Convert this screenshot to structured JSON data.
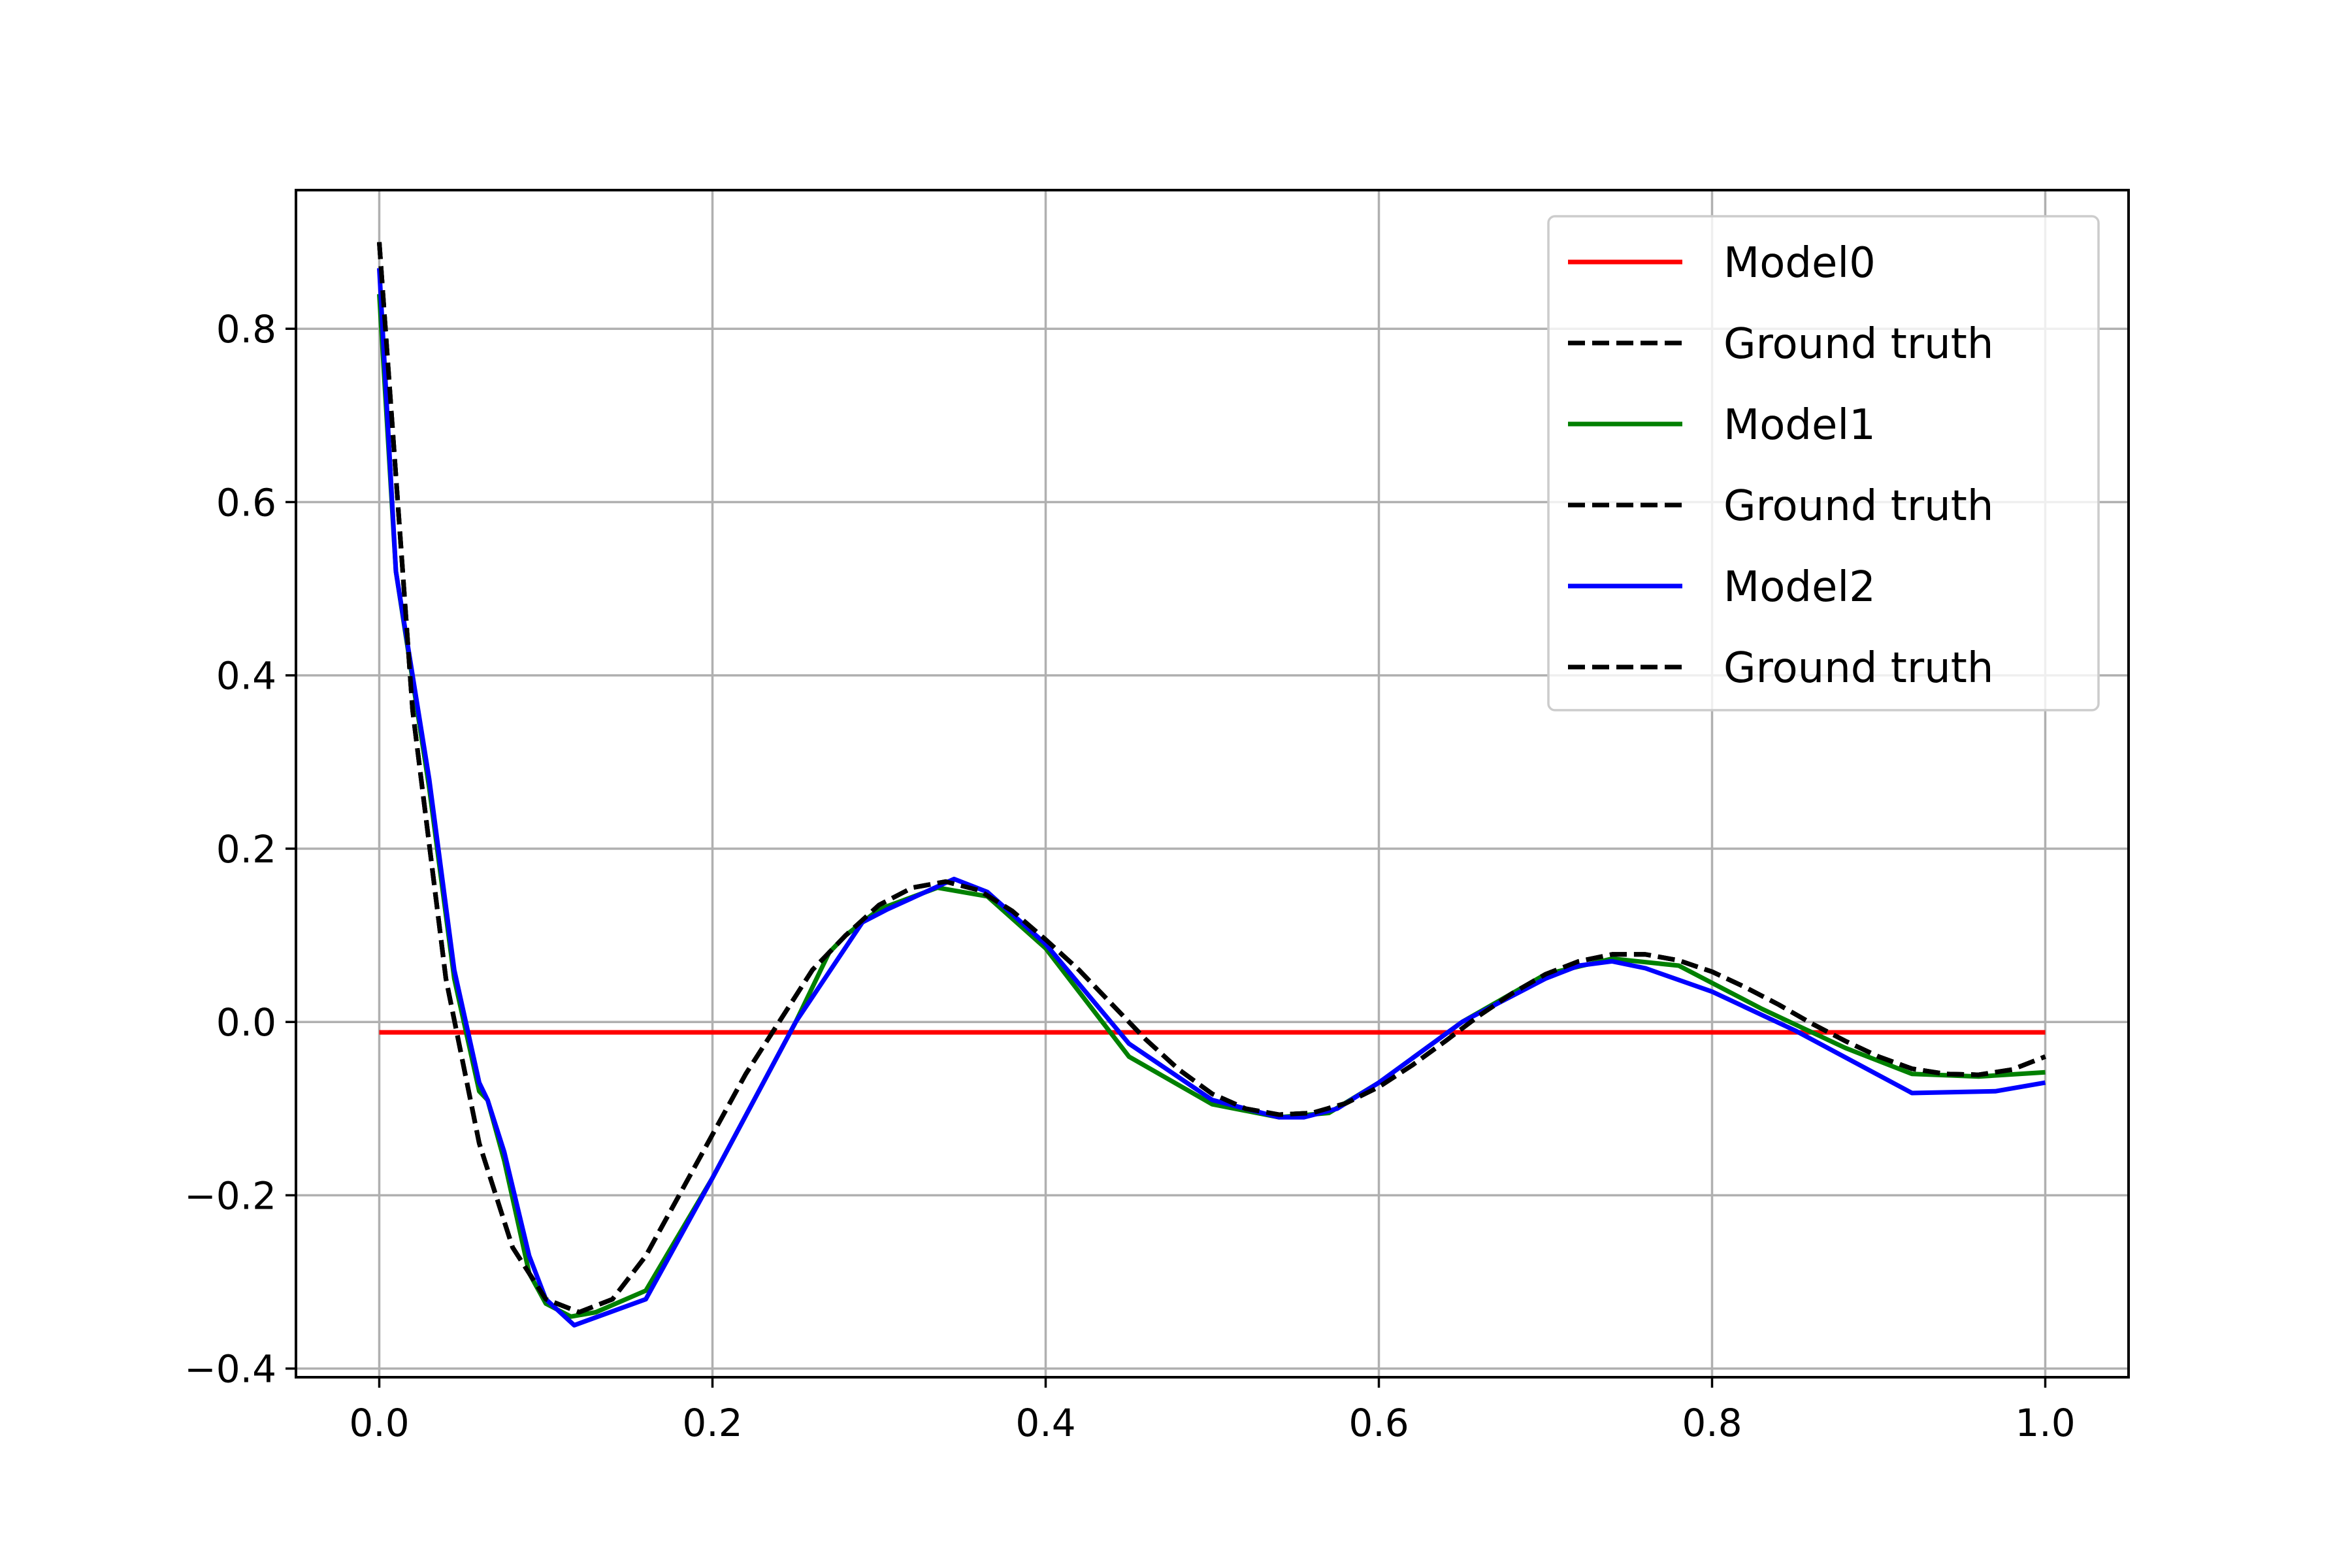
{
  "chart_data": {
    "type": "line",
    "title": "",
    "xlabel": "",
    "ylabel": "",
    "xlim": [
      -0.05,
      1.05
    ],
    "ylim": [
      -0.41,
      0.96
    ],
    "xticks": [
      {
        "value": 0.0,
        "label": "0.0"
      },
      {
        "value": 0.2,
        "label": "0.2"
      },
      {
        "value": 0.4,
        "label": "0.4"
      },
      {
        "value": 0.6,
        "label": "0.6"
      },
      {
        "value": 0.8,
        "label": "0.8"
      },
      {
        "value": 1.0,
        "label": "1.0"
      }
    ],
    "yticks": [
      {
        "value": -0.4,
        "label": "−0.4"
      },
      {
        "value": -0.2,
        "label": "−0.2"
      },
      {
        "value": 0.0,
        "label": "0.0"
      },
      {
        "value": 0.2,
        "label": "0.2"
      },
      {
        "value": 0.4,
        "label": "0.4"
      },
      {
        "value": 0.6,
        "label": "0.6"
      },
      {
        "value": 0.8,
        "label": "0.8"
      }
    ],
    "grid": true,
    "legend_position": "top-right",
    "series": [
      {
        "name": "Model0",
        "color": "#ff0000",
        "dash": "solid",
        "x": [
          0.0,
          1.0
        ],
        "y": [
          -0.012,
          -0.012
        ]
      },
      {
        "name": "Ground truth",
        "color": "#000000",
        "dash": "dashed",
        "x": [
          0.0,
          0.02,
          0.04,
          0.06,
          0.08,
          0.1,
          0.12,
          0.14,
          0.16,
          0.18,
          0.2,
          0.22,
          0.24,
          0.26,
          0.28,
          0.3,
          0.32,
          0.34,
          0.36,
          0.38,
          0.4,
          0.42,
          0.44,
          0.46,
          0.48,
          0.5,
          0.52,
          0.54,
          0.56,
          0.58,
          0.6,
          0.62,
          0.64,
          0.66,
          0.68,
          0.7,
          0.72,
          0.74,
          0.76,
          0.78,
          0.8,
          0.82,
          0.84,
          0.86,
          0.88,
          0.9,
          0.92,
          0.94,
          0.96,
          0.98,
          1.0
        ],
        "y": [
          0.9,
          0.36,
          0.05,
          -0.14,
          -0.26,
          -0.32,
          -0.335,
          -0.32,
          -0.27,
          -0.2,
          -0.13,
          -0.06,
          0.0,
          0.06,
          0.1,
          0.135,
          0.155,
          0.162,
          0.152,
          0.128,
          0.095,
          0.06,
          0.02,
          -0.02,
          -0.055,
          -0.083,
          -0.1,
          -0.107,
          -0.105,
          -0.094,
          -0.075,
          -0.05,
          -0.022,
          0.007,
          0.033,
          0.055,
          0.07,
          0.078,
          0.078,
          0.071,
          0.058,
          0.04,
          0.02,
          -0.002,
          -0.022,
          -0.04,
          -0.054,
          -0.06,
          -0.061,
          -0.055,
          -0.04
        ]
      },
      {
        "name": "Model1",
        "color": "#008000",
        "dash": "solid",
        "x": [
          0.0,
          0.01,
          0.03,
          0.045,
          0.06,
          0.065,
          0.075,
          0.09,
          0.1,
          0.115,
          0.13,
          0.16,
          0.2,
          0.25,
          0.27,
          0.28,
          0.3,
          0.335,
          0.365,
          0.4,
          0.45,
          0.5,
          0.54,
          0.57,
          0.6,
          0.65,
          0.7,
          0.74,
          0.78,
          0.83,
          0.88,
          0.92,
          0.96,
          1.0
        ],
        "y": [
          0.84,
          0.52,
          0.27,
          0.05,
          -0.08,
          -0.09,
          -0.16,
          -0.29,
          -0.325,
          -0.34,
          -0.335,
          -0.31,
          -0.18,
          0.0,
          0.08,
          0.1,
          0.13,
          0.155,
          0.145,
          0.085,
          -0.04,
          -0.095,
          -0.11,
          -0.105,
          -0.07,
          0.0,
          0.055,
          0.073,
          0.065,
          0.015,
          -0.03,
          -0.06,
          -0.063,
          -0.058
        ]
      },
      {
        "name": "Ground truth",
        "color": "#000000",
        "dash": "dashed",
        "x": [
          0.0,
          0.02,
          0.04,
          0.06,
          0.08,
          0.1,
          0.12,
          0.14,
          0.16,
          0.18,
          0.2,
          0.22,
          0.24,
          0.26,
          0.28,
          0.3,
          0.32,
          0.34,
          0.36,
          0.38,
          0.4,
          0.42,
          0.44,
          0.46,
          0.48,
          0.5,
          0.52,
          0.54,
          0.56,
          0.58,
          0.6,
          0.62,
          0.64,
          0.66,
          0.68,
          0.7,
          0.72,
          0.74,
          0.76,
          0.78,
          0.8,
          0.82,
          0.84,
          0.86,
          0.88,
          0.9,
          0.92,
          0.94,
          0.96,
          0.98,
          1.0
        ],
        "y": [
          0.9,
          0.36,
          0.05,
          -0.14,
          -0.26,
          -0.32,
          -0.335,
          -0.32,
          -0.27,
          -0.2,
          -0.13,
          -0.06,
          0.0,
          0.06,
          0.1,
          0.135,
          0.155,
          0.162,
          0.152,
          0.128,
          0.095,
          0.06,
          0.02,
          -0.02,
          -0.055,
          -0.083,
          -0.1,
          -0.107,
          -0.105,
          -0.094,
          -0.075,
          -0.05,
          -0.022,
          0.007,
          0.033,
          0.055,
          0.07,
          0.078,
          0.078,
          0.071,
          0.058,
          0.04,
          0.02,
          -0.002,
          -0.022,
          -0.04,
          -0.054,
          -0.06,
          -0.061,
          -0.055,
          -0.04
        ]
      },
      {
        "name": "Model2",
        "color": "#0000ff",
        "dash": "solid",
        "x": [
          0.0,
          0.01,
          0.03,
          0.045,
          0.06,
          0.065,
          0.075,
          0.09,
          0.1,
          0.117,
          0.16,
          0.2,
          0.25,
          0.29,
          0.305,
          0.345,
          0.365,
          0.4,
          0.45,
          0.5,
          0.54,
          0.555,
          0.575,
          0.6,
          0.65,
          0.7,
          0.72,
          0.74,
          0.76,
          0.8,
          0.85,
          0.92,
          0.97,
          1.0
        ],
        "y": [
          0.87,
          0.52,
          0.28,
          0.06,
          -0.07,
          -0.09,
          -0.15,
          -0.27,
          -0.32,
          -0.35,
          -0.32,
          -0.18,
          0.0,
          0.115,
          0.13,
          0.165,
          0.15,
          0.09,
          -0.025,
          -0.09,
          -0.11,
          -0.11,
          -0.1,
          -0.07,
          0.0,
          0.05,
          0.065,
          0.07,
          0.062,
          0.035,
          -0.01,
          -0.082,
          -0.08,
          -0.07
        ]
      },
      {
        "name": "Ground truth",
        "color": "#000000",
        "dash": "dashed",
        "x": [
          0.0,
          0.02,
          0.04,
          0.06,
          0.08,
          0.1,
          0.12,
          0.14,
          0.16,
          0.18,
          0.2,
          0.22,
          0.24,
          0.26,
          0.28,
          0.3,
          0.32,
          0.34,
          0.36,
          0.38,
          0.4,
          0.42,
          0.44,
          0.46,
          0.48,
          0.5,
          0.52,
          0.54,
          0.56,
          0.58,
          0.6,
          0.62,
          0.64,
          0.66,
          0.68,
          0.7,
          0.72,
          0.74,
          0.76,
          0.78,
          0.8,
          0.82,
          0.84,
          0.86,
          0.88,
          0.9,
          0.92,
          0.94,
          0.96,
          0.98,
          1.0
        ],
        "y": [
          0.9,
          0.36,
          0.05,
          -0.14,
          -0.26,
          -0.32,
          -0.335,
          -0.32,
          -0.27,
          -0.2,
          -0.13,
          -0.06,
          0.0,
          0.06,
          0.1,
          0.135,
          0.155,
          0.162,
          0.152,
          0.128,
          0.095,
          0.06,
          0.02,
          -0.02,
          -0.055,
          -0.083,
          -0.1,
          -0.107,
          -0.105,
          -0.094,
          -0.075,
          -0.05,
          -0.022,
          0.007,
          0.033,
          0.055,
          0.07,
          0.078,
          0.078,
          0.071,
          0.058,
          0.04,
          0.02,
          -0.002,
          -0.022,
          -0.04,
          -0.054,
          -0.06,
          -0.061,
          -0.055,
          -0.04
        ]
      }
    ]
  }
}
